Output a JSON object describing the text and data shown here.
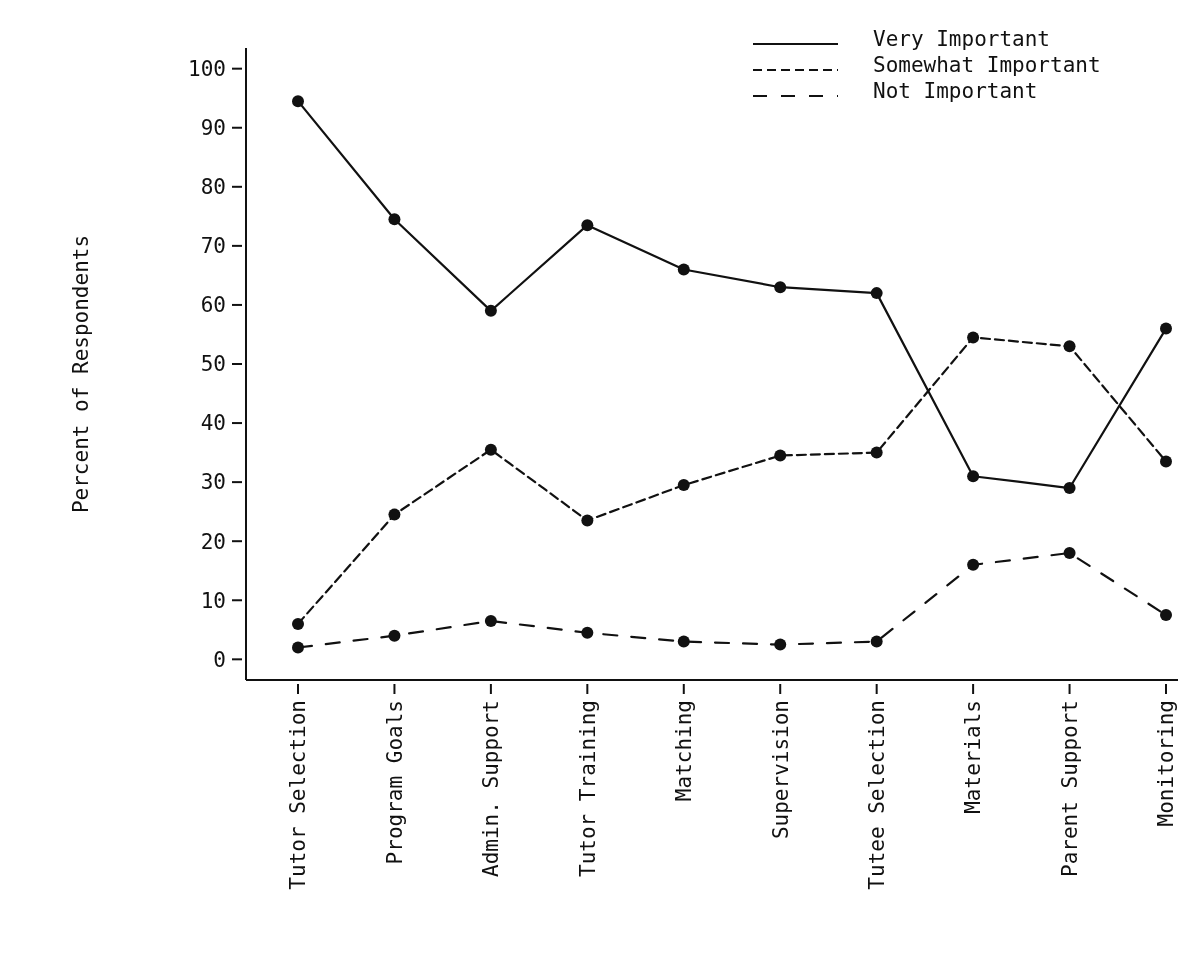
{
  "chart_data": {
    "type": "line",
    "ylabel": "Percent of Respondents",
    "categories": [
      "Tutor Selection",
      "Program Goals",
      "Admin. Support",
      "Tutor Training",
      "Matching",
      "Supervision",
      "Tutee Selection",
      "Materials",
      "Parent Support",
      "Monitoring"
    ],
    "series": [
      {
        "name": "Very Important",
        "color": "#111111",
        "line_style": "solid",
        "values": [
          94.5,
          74.5,
          59,
          73.5,
          66,
          63,
          62,
          31,
          29,
          56
        ]
      },
      {
        "name": "Somewhat Important",
        "color": "#111111",
        "line_style": "dashed",
        "values": [
          6,
          24.5,
          35.5,
          23.5,
          29.5,
          34.5,
          35,
          54.5,
          53,
          33.5
        ]
      },
      {
        "name": "Not Important",
        "color": "#111111",
        "line_style": "longdash",
        "values": [
          2,
          4,
          6.5,
          4.5,
          3,
          2.5,
          3,
          16,
          18,
          7.5
        ]
      }
    ],
    "ylim": [
      -3.5,
      103.5
    ],
    "yticks": [
      0,
      10,
      20,
      30,
      40,
      50,
      60,
      70,
      80,
      90,
      100
    ],
    "marker": "circle",
    "legend": "top right",
    "grid": false
  }
}
